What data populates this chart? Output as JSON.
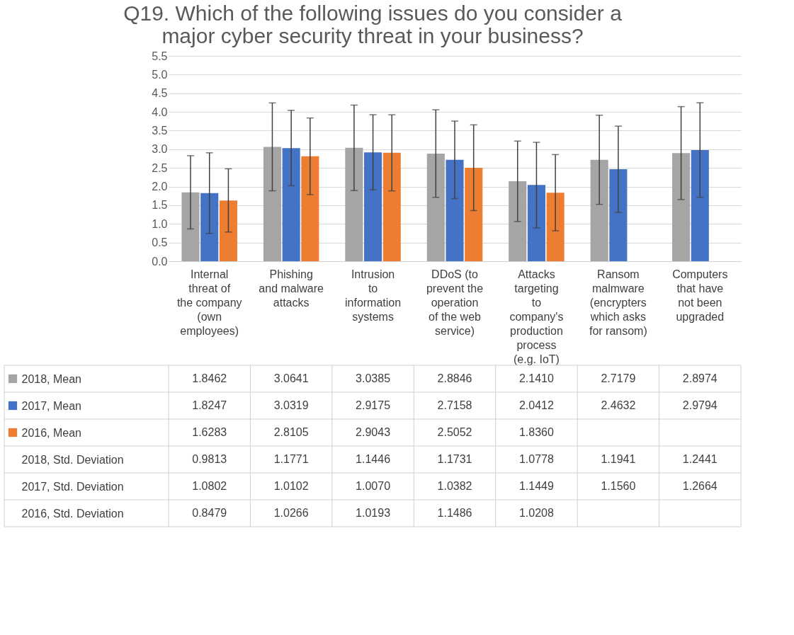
{
  "chart_data": {
    "type": "bar",
    "title": "Q19. Which of the following issues do you consider a major cyber security threat in your business?",
    "categories": [
      "Internal threat of the company (own employees)",
      "Phishing and malware attacks",
      "Intrusion to information systems",
      "DDoS (to prevent the operation of the web service)",
      "Attacks targeting to company's production process (e.g. IoT)",
      "Ransom malmware (encrypters which asks for ransom)",
      "Computers that have not been upgraded"
    ],
    "series": [
      {
        "name": "2018, Mean",
        "color": "#a5a5a5",
        "values": [
          1.8462,
          3.0641,
          3.0385,
          2.8846,
          2.141,
          2.7179,
          2.8974
        ],
        "value_labels": [
          "1.8462",
          "3.0641",
          "3.0385",
          "2.8846",
          "2.1410",
          "2.7179",
          "2.8974"
        ],
        "errors": [
          0.9813,
          1.1771,
          1.1446,
          1.1731,
          1.0778,
          1.1941,
          1.2441
        ]
      },
      {
        "name": "2017, Mean",
        "color": "#4472c4",
        "values": [
          1.8247,
          3.0319,
          2.9175,
          2.7158,
          2.0412,
          2.4632,
          2.9794
        ],
        "value_labels": [
          "1.8247",
          "3.0319",
          "2.9175",
          "2.7158",
          "2.0412",
          "2.4632",
          "2.9794"
        ],
        "errors": [
          1.0802,
          1.0102,
          1.007,
          1.0382,
          1.1449,
          1.156,
          1.2664
        ]
      },
      {
        "name": "2016, Mean",
        "color": "#ed7d31",
        "values": [
          1.6283,
          2.8105,
          2.9043,
          2.5052,
          1.836,
          null,
          null
        ],
        "value_labels": [
          "1.6283",
          "2.8105",
          "2.9043",
          "2.5052",
          "1.8360",
          null,
          null
        ],
        "errors": [
          0.8479,
          1.0266,
          1.0193,
          1.1486,
          1.0208,
          null,
          null
        ]
      }
    ],
    "annotations": [
      "2018, Std. Deviation",
      "0.9813",
      "1.1771",
      "1.1446",
      "1.1731",
      "1.0778",
      "1.1941",
      "1.2441",
      "2017, Std. Deviation",
      "1.0802",
      "1.0102",
      "1.0070",
      "1.0382",
      "1.1449",
      "1.1560",
      "1.2664",
      "2016, Std. Deviation",
      "0.8479",
      "1.0266",
      "1.0193",
      "1.1486",
      "1.0208"
    ],
    "ylim": [
      0,
      5.5
    ],
    "yticks": [
      {
        "value": 0,
        "label": "0.0"
      },
      0.5,
      {
        "value": 1,
        "label": "1.0"
      },
      1.5,
      {
        "value": 2,
        "label": "2.0"
      },
      2.5,
      {
        "value": 3,
        "label": "3.0"
      },
      3.5,
      {
        "value": 4,
        "label": "4.0"
      },
      4.5,
      {
        "value": 5,
        "label": "5.0"
      },
      5.5
    ],
    "grid": "y",
    "legend": "bottom"
  }
}
